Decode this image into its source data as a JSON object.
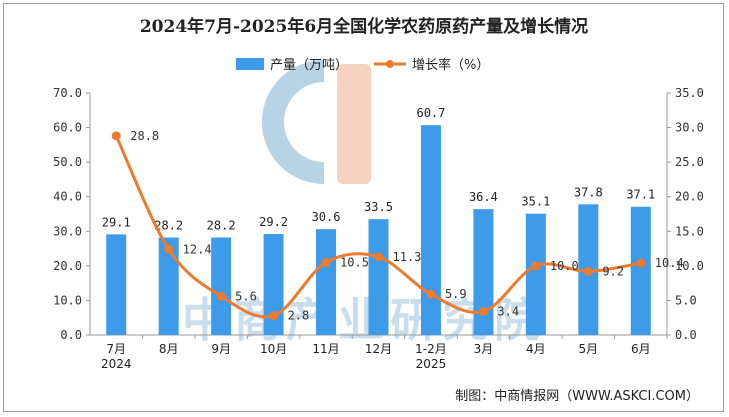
{
  "colors": {
    "bar": "#3d9be9",
    "line": "#ed7b2f",
    "axis": "#999999",
    "watermark_blue": "#b8d2e6",
    "watermark_orange": "#f6d2c0"
  },
  "watermark": {
    "text": "中商产业研究院"
  },
  "source": "制图：中商情报网（WWW.ASKCI.COM）",
  "chart_data": {
    "type": "bar",
    "title": "2024年7月-2025年6月全国化学农药原药产量及增长情况",
    "legend_position": "top-center",
    "grid": false,
    "categories": [
      "7月\n2024",
      "8月",
      "9月",
      "10月",
      "11月",
      "12月",
      "1-2月\n2025",
      "3月",
      "4月",
      "5月",
      "6月"
    ],
    "y_left": {
      "min": 0,
      "max": 70,
      "step": 10,
      "ticks": [
        "0.0",
        "10.0",
        "20.0",
        "30.0",
        "40.0",
        "50.0",
        "60.0",
        "70.0"
      ]
    },
    "y_right": {
      "min": 0,
      "max": 35,
      "step": 5,
      "ticks": [
        "0.0",
        "5.0",
        "10.0",
        "15.0",
        "20.0",
        "25.0",
        "30.0",
        "35.0"
      ]
    },
    "series": [
      {
        "name": "产量（万吨）",
        "type": "bar",
        "axis": "left",
        "values": [
          29.1,
          28.2,
          28.2,
          29.2,
          30.6,
          33.5,
          60.7,
          36.4,
          35.1,
          37.8,
          37.1
        ],
        "labels": [
          "29.1",
          "28.2",
          "28.2",
          "29.2",
          "30.6",
          "33.5",
          "60.7",
          "36.4",
          "35.1",
          "37.8",
          "37.1"
        ]
      },
      {
        "name": "增长率（%）",
        "type": "line",
        "axis": "right",
        "values": [
          28.8,
          12.4,
          5.6,
          2.8,
          10.5,
          11.3,
          5.9,
          3.4,
          10.0,
          9.2,
          10.4
        ],
        "labels": [
          "28.8",
          "12.4",
          "5.6",
          "2.8",
          "10.5",
          "11.3",
          "5.9",
          "3.4",
          "10.0",
          "9.2",
          "10.4"
        ]
      }
    ]
  }
}
